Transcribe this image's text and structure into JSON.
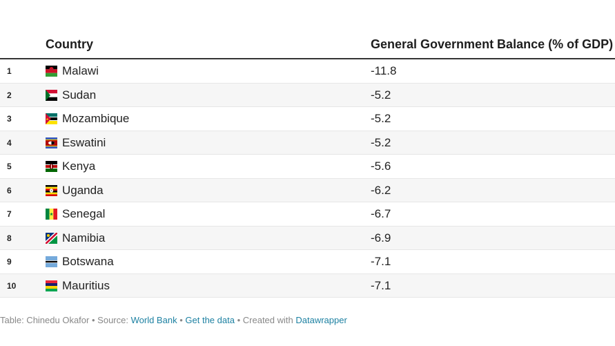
{
  "table": {
    "headers": {
      "country": "Country",
      "balance": "General Government Balance (% of GDP)"
    },
    "rows": [
      {
        "rank": "1",
        "country": "Malawi",
        "value": "-11.8",
        "flag_icon": "malawi-flag-icon"
      },
      {
        "rank": "2",
        "country": "Sudan",
        "value": "-5.2",
        "flag_icon": "sudan-flag-icon"
      },
      {
        "rank": "3",
        "country": "Mozambique",
        "value": "-5.2",
        "flag_icon": "mozambique-flag-icon"
      },
      {
        "rank": "4",
        "country": "Eswatini",
        "value": "-5.2",
        "flag_icon": "eswatini-flag-icon"
      },
      {
        "rank": "5",
        "country": "Kenya",
        "value": "-5.6",
        "flag_icon": "kenya-flag-icon"
      },
      {
        "rank": "6",
        "country": "Uganda",
        "value": "-6.2",
        "flag_icon": "uganda-flag-icon"
      },
      {
        "rank": "7",
        "country": "Senegal",
        "value": "-6.7",
        "flag_icon": "senegal-flag-icon"
      },
      {
        "rank": "8",
        "country": "Namibia",
        "value": "-6.9",
        "flag_icon": "namibia-flag-icon"
      },
      {
        "rank": "9",
        "country": "Botswana",
        "value": "-7.1",
        "flag_icon": "botswana-flag-icon"
      },
      {
        "rank": "10",
        "country": "Mauritius",
        "value": "-7.1",
        "flag_icon": "mauritius-flag-icon"
      }
    ]
  },
  "footer": {
    "byline": "Table: Chinedu Okafor",
    "source_prefix": "Source:",
    "source_link": "World Bank",
    "get_data_link": "Get the data",
    "created_prefix": "Created with",
    "created_link": "Datawrapper",
    "separator": "•"
  },
  "colors": {
    "link": "#1d81a2",
    "header_rule": "#333333",
    "alt_row": "#f6f6f6",
    "footer_text": "#888888"
  }
}
